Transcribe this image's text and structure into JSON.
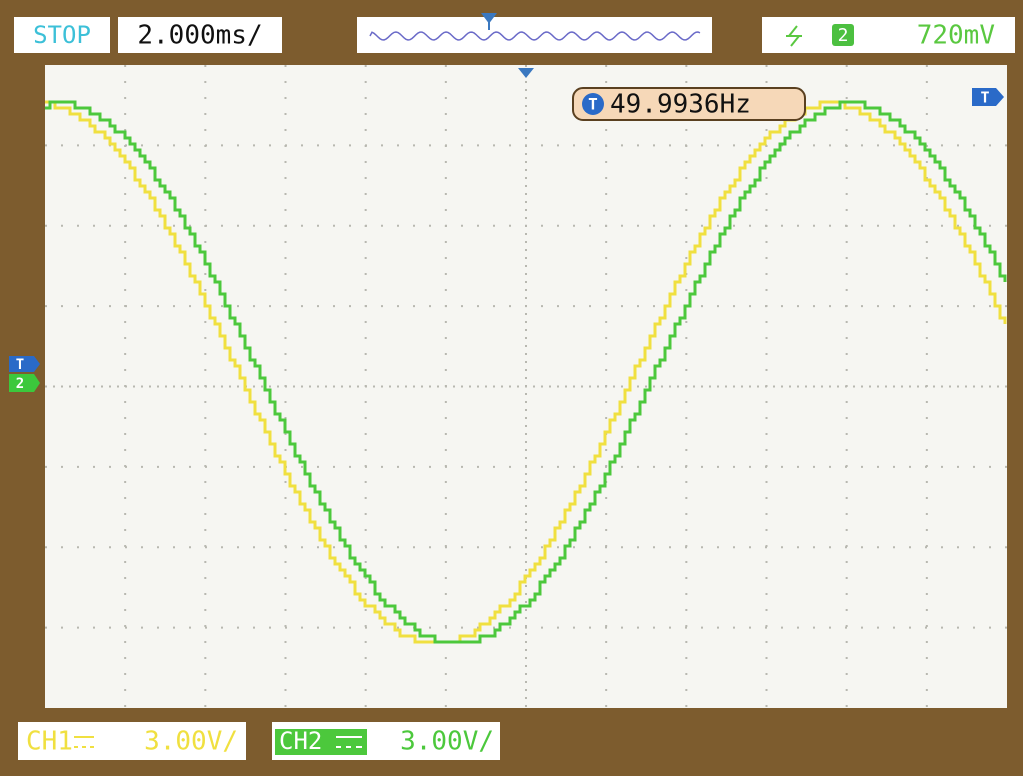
{
  "status": "STOP",
  "timebase": "2.000ms/",
  "trigger": {
    "source": "2",
    "level": "720mV"
  },
  "frequency": {
    "icon": "T",
    "value": "49.9936Hz"
  },
  "markers": {
    "trigger_left": "T",
    "channel_left": "2",
    "trigger_right": "T"
  },
  "channels": [
    {
      "name": "CH1",
      "scale": "3.00V/"
    },
    {
      "name": "CH2",
      "scale": "3.00V/"
    }
  ]
}
